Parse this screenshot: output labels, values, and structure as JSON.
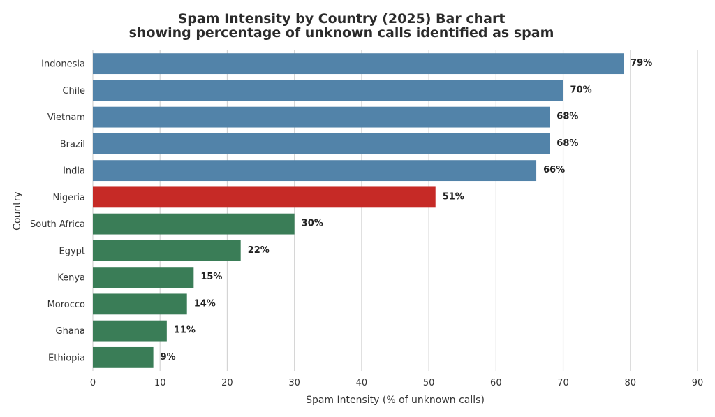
{
  "chart_data": {
    "type": "bar",
    "orientation": "horizontal",
    "title_line1": "Spam Intensity by Country (2025)  Bar chart",
    "title_line2": "showing percentage of unknown calls identified as spam",
    "xlabel": "Spam Intensity (% of unknown calls)",
    "ylabel": "Country",
    "xlim": [
      0,
      90
    ],
    "xticks": [
      0,
      10,
      20,
      30,
      40,
      50,
      60,
      70,
      80,
      90
    ],
    "grid": true,
    "value_suffix": "%",
    "categories": [
      "Indonesia",
      "Chile",
      "Vietnam",
      "Brazil",
      "India",
      "Nigeria",
      "South Africa",
      "Egypt",
      "Kenya",
      "Morocco",
      "Ghana",
      "Ethiopia"
    ],
    "values": [
      79,
      70,
      68,
      68,
      66,
      51,
      30,
      22,
      15,
      14,
      11,
      9
    ],
    "bar_colors": [
      "#5283a9",
      "#5283a9",
      "#5283a9",
      "#5283a9",
      "#5283a9",
      "#c62a26",
      "#3a7d57",
      "#3a7d57",
      "#3a7d57",
      "#3a7d57",
      "#3a7d57",
      "#3a7d57"
    ]
  }
}
